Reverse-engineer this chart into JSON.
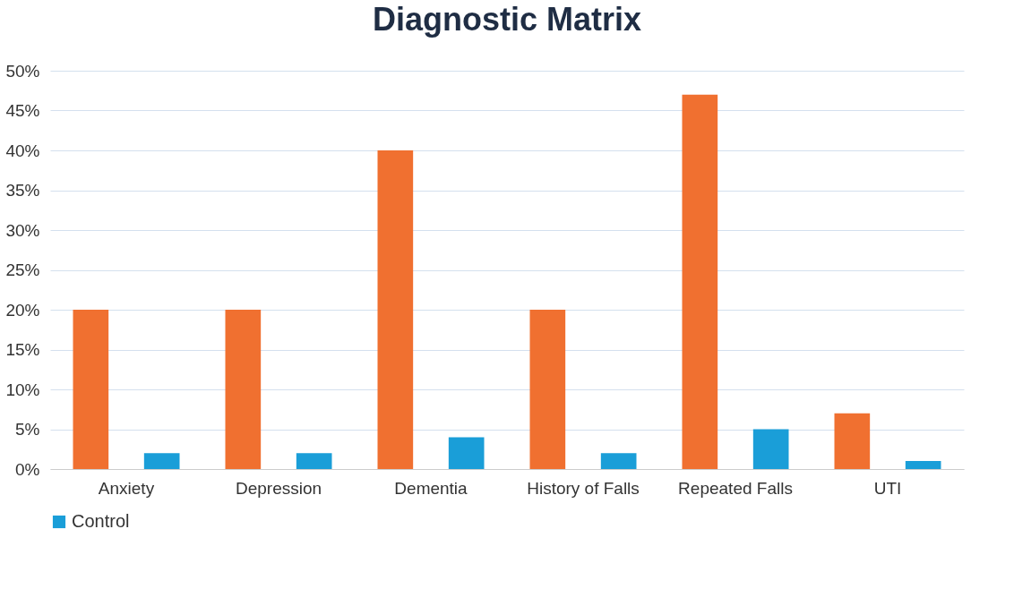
{
  "chart_data": {
    "type": "bar",
    "title": "Diagnostic Matrix",
    "categories": [
      "Anxiety",
      "Depression",
      "Dementia",
      "History of Falls",
      "Repeated Falls",
      "UTI"
    ],
    "series": [
      {
        "color": "#f07030",
        "values": [
          20,
          20,
          40,
          20,
          47,
          7
        ]
      },
      {
        "name": "Control",
        "color": "#1a9ed8",
        "values": [
          2,
          2,
          4,
          2,
          5,
          1
        ]
      }
    ],
    "ylim": [
      0,
      50
    ],
    "yticks": [
      {
        "value": 0,
        "label": "0%"
      },
      {
        "value": 5,
        "label": "5%"
      },
      {
        "value": 10,
        "label": "10%"
      },
      {
        "value": 15,
        "label": "15%"
      },
      {
        "value": 20,
        "label": "20%"
      },
      {
        "value": 25,
        "label": "25%"
      },
      {
        "value": 30,
        "label": "30%"
      },
      {
        "value": 35,
        "label": "35%"
      },
      {
        "value": 40,
        "label": "40%"
      },
      {
        "value": 45,
        "label": "45%"
      },
      {
        "value": 50,
        "label": "50%"
      }
    ],
    "grid": "y",
    "legend": "bottom"
  }
}
